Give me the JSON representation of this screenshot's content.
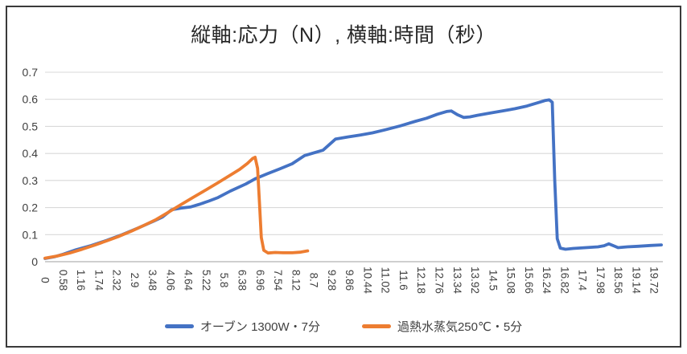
{
  "frame": {
    "border_color": "#3a3a3a",
    "background": "#ffffff"
  },
  "chart_data": {
    "type": "line",
    "title": "縦軸:応力（N）, 横軸:時間（秒）",
    "xlabel": "時間（秒）",
    "ylabel": "応力（N）",
    "xlim": [
      0,
      20
    ],
    "ylim": [
      0,
      0.7
    ],
    "grid": "horizontal",
    "legend_position": "bottom",
    "colors": {
      "gridline": "#d9d9d9",
      "axis_line": "#bfbfbf",
      "axis_text": "#404040",
      "title_text": "#262626"
    },
    "y_ticks": [
      "0",
      "0.1",
      "0.2",
      "0.3",
      "0.4",
      "0.5",
      "0.6",
      "0.7"
    ],
    "x_ticks": [
      "0",
      "0.58",
      "1.16",
      "1.74",
      "2.32",
      "2.9",
      "3.48",
      "4.06",
      "4.64",
      "5.22",
      "5.8",
      "6.38",
      "6.96",
      "7.54",
      "8.12",
      "8.7",
      "9.28",
      "9.86",
      "10.44",
      "11.02",
      "11.6",
      "12.18",
      "12.76",
      "13.34",
      "13.92",
      "14.5",
      "15.08",
      "15.66",
      "16.24",
      "16.82",
      "17.4",
      "17.98",
      "18.56",
      "19.14",
      "19.72"
    ],
    "series": [
      {
        "name": "オーブン 1300W・7分",
        "color": "#4472C4",
        "points": [
          [
            0,
            0.012
          ],
          [
            0.3,
            0.018
          ],
          [
            0.6,
            0.028
          ],
          [
            1,
            0.044
          ],
          [
            1.5,
            0.06
          ],
          [
            2,
            0.079
          ],
          [
            2.5,
            0.1
          ],
          [
            3,
            0.124
          ],
          [
            3.5,
            0.149
          ],
          [
            3.8,
            0.165
          ],
          [
            4.1,
            0.192
          ],
          [
            4.4,
            0.198
          ],
          [
            4.7,
            0.202
          ],
          [
            5,
            0.212
          ],
          [
            5.3,
            0.224
          ],
          [
            5.6,
            0.237
          ],
          [
            6,
            0.261
          ],
          [
            6.5,
            0.287
          ],
          [
            6.8,
            0.306
          ],
          [
            7.2,
            0.325
          ],
          [
            7.6,
            0.343
          ],
          [
            8,
            0.362
          ],
          [
            8.4,
            0.392
          ],
          [
            9,
            0.412
          ],
          [
            9.4,
            0.453
          ],
          [
            9.8,
            0.461
          ],
          [
            10.2,
            0.468
          ],
          [
            10.6,
            0.476
          ],
          [
            11,
            0.487
          ],
          [
            11.5,
            0.502
          ],
          [
            12,
            0.519
          ],
          [
            12.35,
            0.53
          ],
          [
            12.7,
            0.545
          ],
          [
            13,
            0.555
          ],
          [
            13.15,
            0.557
          ],
          [
            13.35,
            0.543
          ],
          [
            13.55,
            0.533
          ],
          [
            13.75,
            0.535
          ],
          [
            14,
            0.541
          ],
          [
            14.4,
            0.549
          ],
          [
            14.8,
            0.557
          ],
          [
            15.2,
            0.565
          ],
          [
            15.6,
            0.575
          ],
          [
            16,
            0.589
          ],
          [
            16.2,
            0.596
          ],
          [
            16.32,
            0.598
          ],
          [
            16.42,
            0.589
          ],
          [
            16.5,
            0.3
          ],
          [
            16.58,
            0.085
          ],
          [
            16.68,
            0.05
          ],
          [
            16.85,
            0.046
          ],
          [
            17.1,
            0.049
          ],
          [
            17.5,
            0.052
          ],
          [
            17.9,
            0.055
          ],
          [
            18.1,
            0.059
          ],
          [
            18.25,
            0.066
          ],
          [
            18.4,
            0.059
          ],
          [
            18.55,
            0.052
          ],
          [
            18.85,
            0.055
          ],
          [
            19.2,
            0.057
          ],
          [
            19.6,
            0.06
          ],
          [
            19.95,
            0.062
          ]
        ]
      },
      {
        "name": "過熱水蒸気250℃・5分",
        "color": "#ED7D31",
        "points": [
          [
            0,
            0.013
          ],
          [
            0.4,
            0.021
          ],
          [
            0.8,
            0.032
          ],
          [
            1.2,
            0.046
          ],
          [
            1.6,
            0.061
          ],
          [
            2,
            0.077
          ],
          [
            2.4,
            0.094
          ],
          [
            2.8,
            0.113
          ],
          [
            3.2,
            0.134
          ],
          [
            3.6,
            0.156
          ],
          [
            4,
            0.183
          ],
          [
            4.4,
            0.211
          ],
          [
            4.8,
            0.238
          ],
          [
            5.2,
            0.265
          ],
          [
            5.6,
            0.292
          ],
          [
            6,
            0.32
          ],
          [
            6.3,
            0.341
          ],
          [
            6.55,
            0.363
          ],
          [
            6.72,
            0.381
          ],
          [
            6.8,
            0.386
          ],
          [
            6.88,
            0.345
          ],
          [
            6.94,
            0.22
          ],
          [
            7,
            0.09
          ],
          [
            7.08,
            0.042
          ],
          [
            7.22,
            0.032
          ],
          [
            7.45,
            0.034
          ],
          [
            7.7,
            0.033
          ],
          [
            8,
            0.033
          ],
          [
            8.25,
            0.035
          ],
          [
            8.5,
            0.04
          ]
        ]
      }
    ]
  }
}
